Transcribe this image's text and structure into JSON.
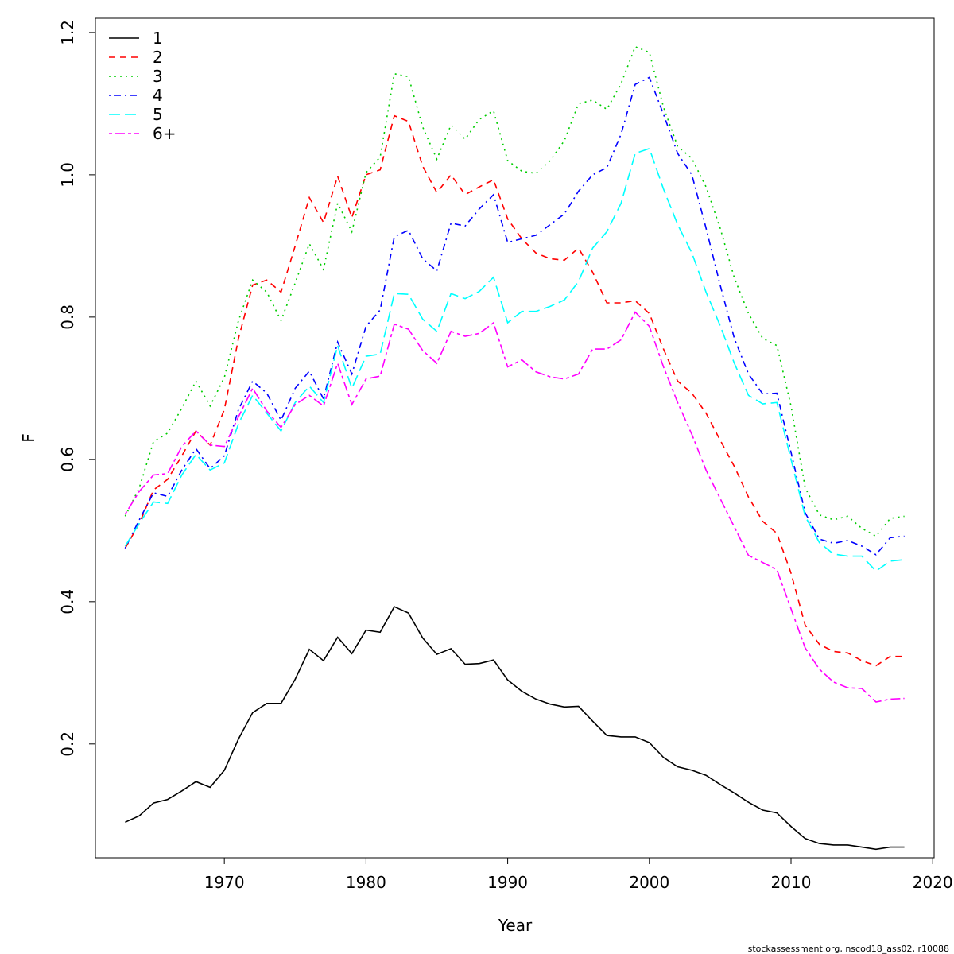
{
  "chart_data": {
    "type": "line",
    "title": "",
    "xlabel": "Year",
    "ylabel": "F",
    "xlim": [
      1960.9,
      2020.1
    ],
    "ylim": [
      0.04,
      1.22
    ],
    "x_ticks": [
      1970,
      1980,
      1990,
      2000,
      2010,
      2020
    ],
    "x_tick_labels": [
      "1970",
      "1980",
      "1990",
      "2000",
      "2010",
      "2020"
    ],
    "y_ticks": [
      0.2,
      0.4,
      0.6,
      0.8,
      1.0,
      1.2
    ],
    "y_tick_labels": [
      "0.2",
      "0.4",
      "0.6",
      "0.8",
      "1.0",
      "1.2"
    ],
    "grid": false,
    "legend_position": "top-left",
    "x": [
      1963,
      1964,
      1965,
      1966,
      1967,
      1968,
      1969,
      1970,
      1971,
      1972,
      1973,
      1974,
      1975,
      1976,
      1977,
      1978,
      1979,
      1980,
      1981,
      1982,
      1983,
      1984,
      1985,
      1986,
      1987,
      1988,
      1989,
      1990,
      1991,
      1992,
      1993,
      1994,
      1995,
      1996,
      1997,
      1998,
      1999,
      2000,
      2001,
      2002,
      2003,
      2004,
      2005,
      2006,
      2007,
      2008,
      2009,
      2010,
      2011,
      2012,
      2013,
      2014,
      2015,
      2016,
      2017,
      2018
    ],
    "series": [
      {
        "name": "1",
        "color": "#000000",
        "dash": "solid",
        "values": [
          0.09,
          0.099,
          0.117,
          0.122,
          0.134,
          0.147,
          0.139,
          0.163,
          0.207,
          0.244,
          0.257,
          0.257,
          0.291,
          0.333,
          0.317,
          0.35,
          0.327,
          0.36,
          0.357,
          0.393,
          0.384,
          0.349,
          0.326,
          0.334,
          0.312,
          0.313,
          0.318,
          0.29,
          0.274,
          0.263,
          0.256,
          0.252,
          0.253,
          0.232,
          0.212,
          0.21,
          0.21,
          0.202,
          0.181,
          0.168,
          0.163,
          0.156,
          0.143,
          0.131,
          0.118,
          0.107,
          0.103,
          0.084,
          0.067,
          0.06,
          0.058,
          0.058,
          0.055,
          0.052,
          0.055,
          0.055
        ]
      },
      {
        "name": "2",
        "color": "#ff0000",
        "dash": "dashed",
        "values": [
          0.475,
          0.51,
          0.557,
          0.572,
          0.605,
          0.64,
          0.62,
          0.67,
          0.77,
          0.845,
          0.852,
          0.835,
          0.9,
          0.968,
          0.933,
          0.998,
          0.94,
          1.0,
          1.007,
          1.083,
          1.075,
          1.012,
          0.975,
          1.0,
          0.972,
          0.983,
          0.993,
          0.938,
          0.91,
          0.89,
          0.882,
          0.88,
          0.897,
          0.863,
          0.82,
          0.82,
          0.823,
          0.805,
          0.755,
          0.71,
          0.693,
          0.665,
          0.627,
          0.59,
          0.547,
          0.513,
          0.496,
          0.44,
          0.367,
          0.34,
          0.33,
          0.328,
          0.317,
          0.31,
          0.323,
          0.323
        ]
      },
      {
        "name": "3",
        "color": "#00cd00",
        "dash": "dotted",
        "values": [
          0.52,
          0.56,
          0.625,
          0.637,
          0.672,
          0.71,
          0.675,
          0.715,
          0.795,
          0.852,
          0.835,
          0.795,
          0.848,
          0.903,
          0.867,
          0.96,
          0.92,
          1.003,
          1.025,
          1.142,
          1.138,
          1.067,
          1.022,
          1.07,
          1.05,
          1.078,
          1.09,
          1.02,
          1.005,
          1.002,
          1.02,
          1.048,
          1.1,
          1.105,
          1.092,
          1.128,
          1.18,
          1.172,
          1.095,
          1.04,
          1.023,
          0.983,
          0.925,
          0.855,
          0.805,
          0.77,
          0.76,
          0.675,
          0.56,
          0.522,
          0.515,
          0.52,
          0.503,
          0.492,
          0.517,
          0.52
        ]
      },
      {
        "name": "4",
        "color": "#0000ff",
        "dash": "dotdash",
        "values": [
          0.475,
          0.515,
          0.553,
          0.548,
          0.585,
          0.615,
          0.587,
          0.605,
          0.67,
          0.71,
          0.693,
          0.655,
          0.7,
          0.724,
          0.685,
          0.765,
          0.72,
          0.787,
          0.81,
          0.913,
          0.922,
          0.882,
          0.865,
          0.932,
          0.928,
          0.952,
          0.972,
          0.905,
          0.91,
          0.915,
          0.93,
          0.945,
          0.977,
          1.0,
          1.01,
          1.057,
          1.127,
          1.137,
          1.085,
          1.03,
          1.0,
          0.925,
          0.845,
          0.77,
          0.72,
          0.692,
          0.693,
          0.61,
          0.525,
          0.488,
          0.482,
          0.486,
          0.478,
          0.466,
          0.49,
          0.492
        ]
      },
      {
        "name": "5",
        "color": "#00ffff",
        "dash": "longdash",
        "values": [
          0.478,
          0.51,
          0.54,
          0.538,
          0.578,
          0.607,
          0.585,
          0.595,
          0.65,
          0.69,
          0.665,
          0.64,
          0.68,
          0.703,
          0.68,
          0.76,
          0.7,
          0.745,
          0.748,
          0.833,
          0.832,
          0.797,
          0.78,
          0.833,
          0.826,
          0.836,
          0.856,
          0.792,
          0.808,
          0.808,
          0.815,
          0.824,
          0.85,
          0.897,
          0.92,
          0.96,
          1.03,
          1.037,
          0.98,
          0.93,
          0.89,
          0.835,
          0.788,
          0.735,
          0.69,
          0.678,
          0.68,
          0.6,
          0.52,
          0.483,
          0.467,
          0.464,
          0.464,
          0.443,
          0.457,
          0.459
        ]
      },
      {
        "name": "6+",
        "color": "#ff00ff",
        "dash": "twodash",
        "values": [
          0.523,
          0.555,
          0.578,
          0.58,
          0.618,
          0.64,
          0.62,
          0.618,
          0.66,
          0.7,
          0.668,
          0.645,
          0.677,
          0.69,
          0.675,
          0.735,
          0.677,
          0.713,
          0.717,
          0.79,
          0.783,
          0.753,
          0.735,
          0.78,
          0.773,
          0.777,
          0.792,
          0.73,
          0.74,
          0.723,
          0.716,
          0.713,
          0.72,
          0.755,
          0.755,
          0.768,
          0.807,
          0.787,
          0.73,
          0.68,
          0.635,
          0.585,
          0.545,
          0.505,
          0.465,
          0.455,
          0.445,
          0.39,
          0.335,
          0.305,
          0.287,
          0.279,
          0.278,
          0.259,
          0.263,
          0.264
        ]
      }
    ]
  },
  "footer": "stockassessment.org, nscod18_ass02, r10088"
}
